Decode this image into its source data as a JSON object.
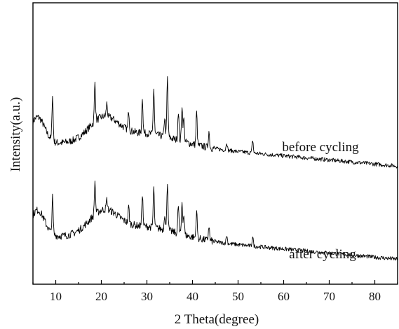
{
  "chart_data": {
    "type": "line",
    "xlabel": "2 Theta(degree)",
    "ylabel": "Intensity(a.u.)",
    "xlim": [
      5,
      85
    ],
    "x_ticks": [
      10,
      20,
      30,
      40,
      50,
      60,
      70,
      80
    ],
    "y_ticks_labeled": false,
    "grid": false,
    "legend": "none",
    "series": [
      {
        "name": "before cycling",
        "offset": 1.0,
        "peaks": [
          {
            "x": 9.3,
            "h": 0.28
          },
          {
            "x": 18.6,
            "h": 0.24
          },
          {
            "x": 21.2,
            "h": 0.08
          },
          {
            "x": 26.0,
            "h": 0.12
          },
          {
            "x": 29.0,
            "h": 0.22
          },
          {
            "x": 31.5,
            "h": 0.28
          },
          {
            "x": 33.9,
            "h": 0.12
          },
          {
            "x": 34.5,
            "h": 0.36
          },
          {
            "x": 36.9,
            "h": 0.18
          },
          {
            "x": 37.7,
            "h": 0.22
          },
          {
            "x": 38.1,
            "h": 0.14
          },
          {
            "x": 40.9,
            "h": 0.2
          },
          {
            "x": 43.6,
            "h": 0.1
          },
          {
            "x": 47.5,
            "h": 0.05
          },
          {
            "x": 53.2,
            "h": 0.08
          }
        ]
      },
      {
        "name": "after cycling",
        "offset": 0.0,
        "peaks": [
          {
            "x": 9.3,
            "h": 0.22
          },
          {
            "x": 18.6,
            "h": 0.2
          },
          {
            "x": 21.2,
            "h": 0.06
          },
          {
            "x": 26.0,
            "h": 0.1
          },
          {
            "x": 29.0,
            "h": 0.2
          },
          {
            "x": 31.5,
            "h": 0.24
          },
          {
            "x": 33.9,
            "h": 0.1
          },
          {
            "x": 34.5,
            "h": 0.3
          },
          {
            "x": 36.9,
            "h": 0.17
          },
          {
            "x": 37.7,
            "h": 0.2
          },
          {
            "x": 38.1,
            "h": 0.12
          },
          {
            "x": 40.9,
            "h": 0.17
          },
          {
            "x": 43.6,
            "h": 0.09
          },
          {
            "x": 47.5,
            "h": 0.05
          },
          {
            "x": 53.2,
            "h": 0.06
          }
        ]
      }
    ]
  }
}
